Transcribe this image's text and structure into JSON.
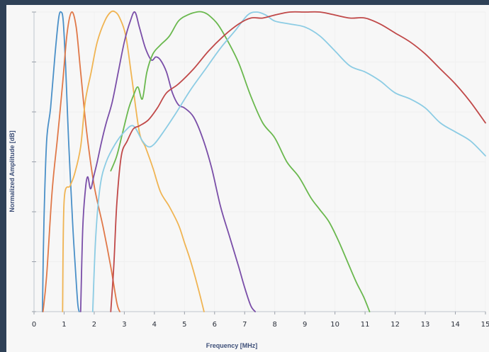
{
  "chart_data": {
    "type": "line",
    "title": "",
    "xlabel": "Frequency [MHz]",
    "ylabel": "Normalized Amplitude [dB]",
    "xlim": [
      0,
      15
    ],
    "ylim": [
      0,
      1
    ],
    "x_ticks": [
      "0",
      "1",
      "2",
      "3",
      "4",
      "5",
      "6",
      "7",
      "8",
      "9",
      "10",
      "11",
      "12",
      "13",
      "14",
      "15"
    ],
    "grid": true,
    "legend": "none",
    "series": [
      {
        "color": "#4a90c8",
        "x": [
          0.28,
          0.33,
          0.42,
          0.55,
          0.7,
          0.82,
          0.9,
          0.97,
          1.05,
          1.15,
          1.28,
          1.37,
          1.45,
          1.5
        ],
        "y": [
          0.0,
          0.3,
          0.57,
          0.68,
          0.86,
          0.98,
          1.0,
          0.97,
          0.82,
          0.57,
          0.3,
          0.15,
          0.03,
          0.0
        ]
      },
      {
        "color": "#e07848",
        "x": [
          0.3,
          0.42,
          0.6,
          0.78,
          0.95,
          1.1,
          1.25,
          1.4,
          1.55,
          1.75,
          2.0,
          2.3,
          2.55,
          2.75,
          2.85
        ],
        "y": [
          0.0,
          0.12,
          0.4,
          0.58,
          0.76,
          0.93,
          1.0,
          0.95,
          0.8,
          0.6,
          0.42,
          0.28,
          0.15,
          0.03,
          0.0
        ]
      },
      {
        "color": "#f0b452",
        "x": [
          0.95,
          1.0,
          1.2,
          1.35,
          1.55,
          1.7,
          1.9,
          2.1,
          2.35,
          2.55,
          2.7,
          2.85,
          3.05,
          3.25,
          3.5,
          3.7,
          3.95,
          4.2,
          4.5,
          4.8,
          5.0,
          5.2,
          5.45,
          5.65
        ],
        "y": [
          0.0,
          0.37,
          0.42,
          0.46,
          0.55,
          0.7,
          0.8,
          0.9,
          0.97,
          1.0,
          1.0,
          0.98,
          0.92,
          0.78,
          0.6,
          0.55,
          0.48,
          0.4,
          0.35,
          0.29,
          0.23,
          0.17,
          0.08,
          0.0
        ]
      },
      {
        "color": "#7a4ea8",
        "x": [
          1.55,
          1.62,
          1.7,
          1.78,
          1.88,
          1.98,
          2.1,
          2.25,
          2.4,
          2.6,
          2.8,
          3.0,
          3.2,
          3.35,
          3.5,
          3.7,
          3.9,
          4.05,
          4.2,
          4.4,
          4.6,
          4.8,
          5.0,
          5.3,
          5.6,
          5.9,
          6.2,
          6.5,
          6.8,
          7.0,
          7.2,
          7.35
        ],
        "y": [
          0.0,
          0.28,
          0.4,
          0.45,
          0.41,
          0.45,
          0.5,
          0.57,
          0.63,
          0.7,
          0.8,
          0.9,
          0.97,
          1.0,
          0.95,
          0.88,
          0.84,
          0.85,
          0.84,
          0.8,
          0.73,
          0.69,
          0.68,
          0.65,
          0.58,
          0.48,
          0.35,
          0.25,
          0.15,
          0.08,
          0.02,
          0.0
        ]
      },
      {
        "color": "#6ab84e",
        "x": [
          2.55,
          2.75,
          2.95,
          3.15,
          3.3,
          3.45,
          3.6,
          3.75,
          3.95,
          4.2,
          4.5,
          4.8,
          5.1,
          5.4,
          5.6,
          5.8,
          6.1,
          6.4,
          6.8,
          7.2,
          7.6,
          8.0,
          8.4,
          8.8,
          9.2,
          9.5,
          9.8,
          10.1,
          10.4,
          10.7,
          10.95,
          11.15
        ],
        "y": [
          0.47,
          0.52,
          0.6,
          0.68,
          0.72,
          0.75,
          0.71,
          0.8,
          0.86,
          0.89,
          0.92,
          0.97,
          0.99,
          1.0,
          1.0,
          0.99,
          0.96,
          0.91,
          0.83,
          0.72,
          0.63,
          0.58,
          0.5,
          0.45,
          0.38,
          0.34,
          0.3,
          0.24,
          0.17,
          0.1,
          0.05,
          0.0
        ]
      },
      {
        "color": "#8ccce4",
        "x": [
          1.95,
          2.05,
          2.2,
          2.4,
          2.7,
          3.0,
          3.3,
          3.6,
          3.8,
          4.0,
          4.3,
          4.7,
          5.2,
          5.7,
          6.2,
          6.7,
          7.1,
          7.4,
          7.7,
          8.0,
          8.5,
          9.0,
          9.5,
          10.0,
          10.5,
          11.0,
          11.5,
          12.0,
          12.5,
          13.0,
          13.5,
          14.0,
          14.5,
          15.0
        ],
        "y": [
          0.0,
          0.25,
          0.42,
          0.5,
          0.56,
          0.6,
          0.62,
          0.57,
          0.55,
          0.56,
          0.6,
          0.66,
          0.74,
          0.81,
          0.88,
          0.94,
          0.99,
          1.0,
          0.99,
          0.97,
          0.96,
          0.95,
          0.92,
          0.87,
          0.82,
          0.8,
          0.77,
          0.73,
          0.71,
          0.68,
          0.63,
          0.6,
          0.57,
          0.52
        ]
      },
      {
        "color": "#c04848",
        "x": [
          2.55,
          2.65,
          2.75,
          2.9,
          3.1,
          3.3,
          3.5,
          3.8,
          4.1,
          4.4,
          4.8,
          5.3,
          5.8,
          6.3,
          6.8,
          7.2,
          7.6,
          8.0,
          8.5,
          9.0,
          9.5,
          10.0,
          10.5,
          11.0,
          11.5,
          12.0,
          12.5,
          13.0,
          13.5,
          14.0,
          14.5,
          15.0
        ],
        "y": [
          0.0,
          0.15,
          0.36,
          0.52,
          0.57,
          0.61,
          0.62,
          0.64,
          0.68,
          0.73,
          0.76,
          0.81,
          0.87,
          0.92,
          0.96,
          0.98,
          0.98,
          0.99,
          1.0,
          1.0,
          1.0,
          0.99,
          0.98,
          0.98,
          0.96,
          0.93,
          0.9,
          0.86,
          0.81,
          0.76,
          0.7,
          0.63
        ]
      }
    ]
  }
}
